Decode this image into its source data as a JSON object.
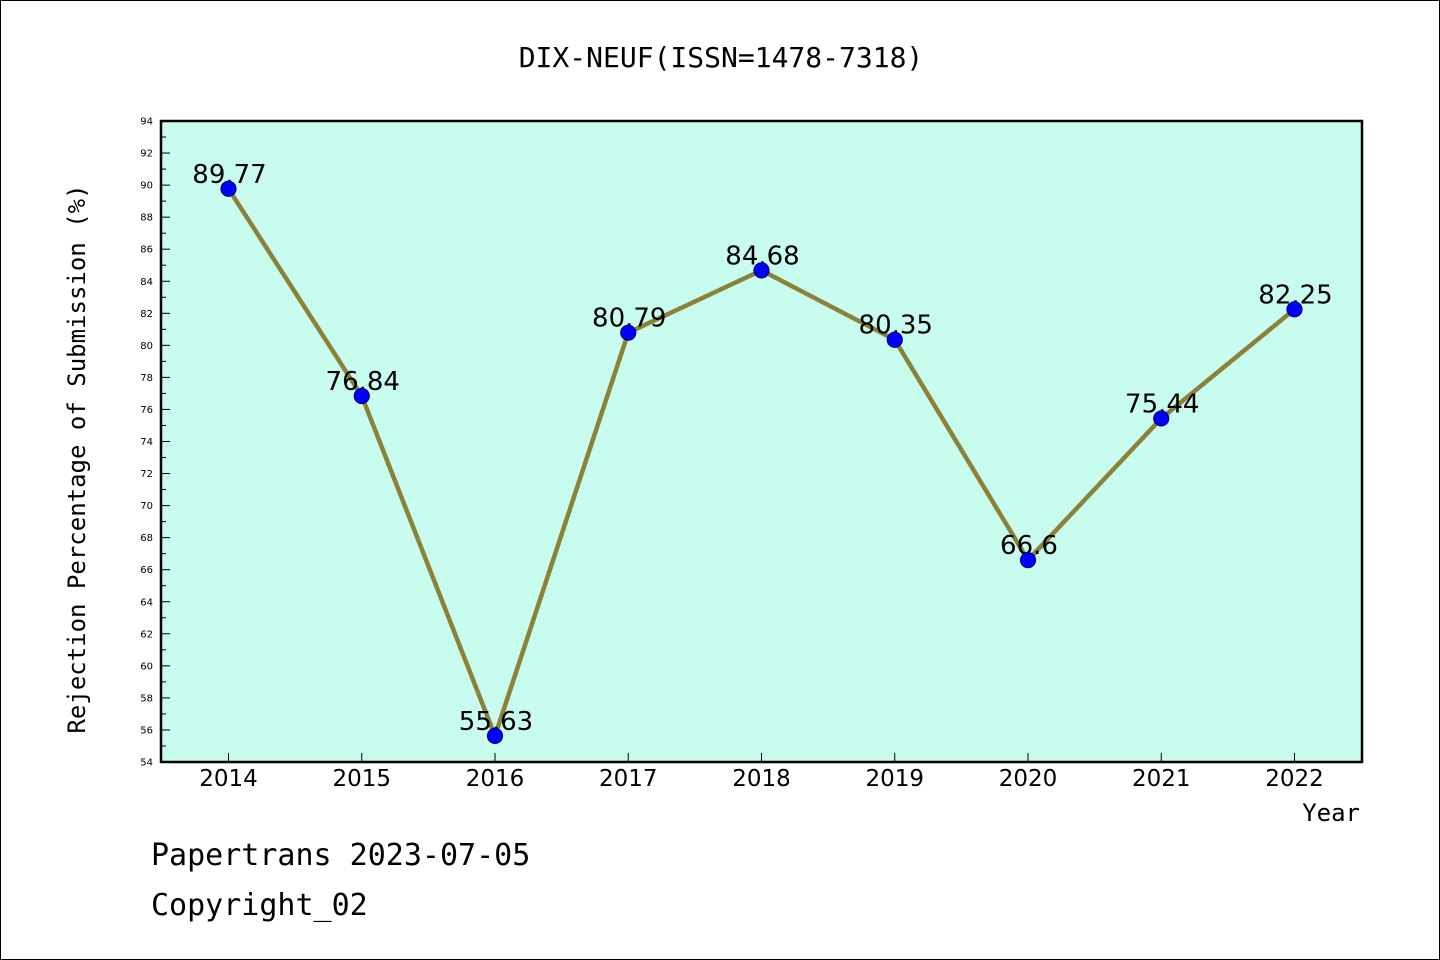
{
  "footer": {
    "line1": "Papertrans 2023-07-05",
    "line2": "Copyright_02"
  },
  "colors": {
    "plot_background": "#c8fcee",
    "line": "#8b8238",
    "marker": "#0000ff",
    "marker_edge": "#00008b"
  },
  "chart_data": {
    "type": "line",
    "title": "DIX-NEUF(ISSN=1478-7318)",
    "xlabel": "Year",
    "ylabel": "Rejection Percentage of Submission (%)",
    "categories": [
      "2014",
      "2015",
      "2016",
      "2017",
      "2018",
      "2019",
      "2020",
      "2021",
      "2022"
    ],
    "series": [
      {
        "values": [
          89.77,
          76.84,
          55.63,
          80.79,
          84.68,
          80.35,
          66.6,
          75.44,
          82.25
        ],
        "labels": [
          "89.77",
          "76.84",
          "55.63",
          "80.79",
          "84.68",
          "80.35",
          "66.6",
          "75.44",
          "82.25"
        ]
      }
    ],
    "ylim": [
      54,
      94
    ],
    "yticks": [
      54,
      56,
      58,
      60,
      62,
      64,
      66,
      68,
      70,
      72,
      74,
      76,
      78,
      80,
      82,
      84,
      86,
      88,
      90,
      92,
      94
    ],
    "grid": false,
    "legend": "none"
  }
}
